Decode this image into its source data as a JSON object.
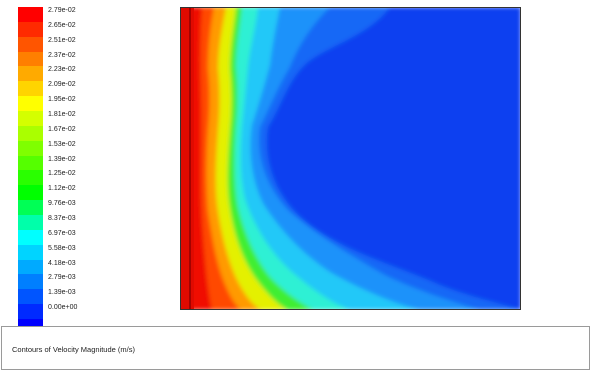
{
  "legend": {
    "colors": [
      "#ff0000",
      "#ff2a00",
      "#ff5500",
      "#ff7f00",
      "#ffaa00",
      "#ffd400",
      "#ffff00",
      "#d4ff00",
      "#aaff00",
      "#7fff00",
      "#55ff00",
      "#2aff00",
      "#00ff00",
      "#00ff55",
      "#00ffaa",
      "#00ffff",
      "#00d4ff",
      "#00aaff",
      "#007fff",
      "#0055ff",
      "#002aff",
      "#0000ff"
    ],
    "labels": [
      "2.79e-02",
      "2.65e-02",
      "2.51e-02",
      "2.37e-02",
      "2.23e-02",
      "2.09e-02",
      "1.95e-02",
      "1.81e-02",
      "1.67e-02",
      "1.53e-02",
      "1.39e-02",
      "1.25e-02",
      "1.12e-02",
      "9.76e-03",
      "8.37e-03",
      "6.97e-03",
      "5.58e-03",
      "4.18e-03",
      "2.79e-03",
      "1.39e-03",
      "0.00e+00"
    ]
  },
  "caption": "Contours of Velocity Magnitude (m/s)"
}
